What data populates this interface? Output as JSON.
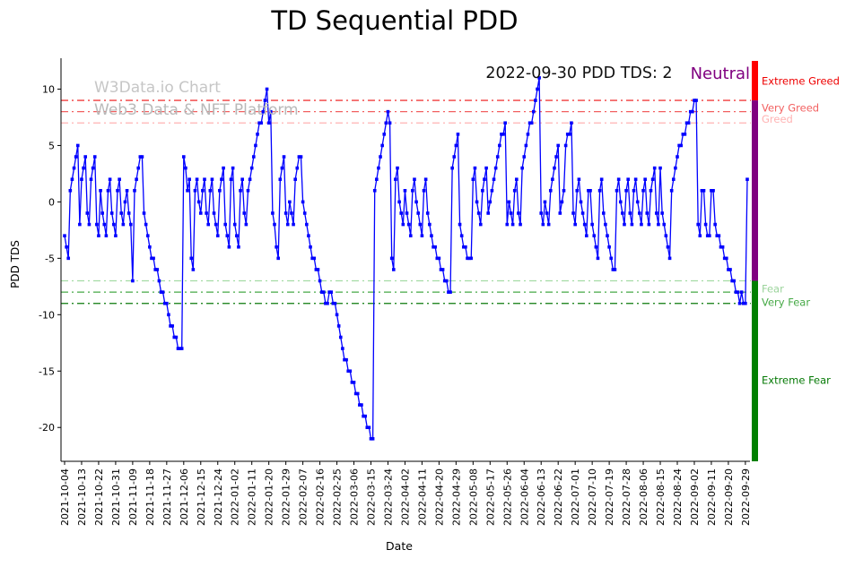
{
  "title": "TD Sequential PDD",
  "watermark": {
    "line1": "W3Data.io Chart",
    "line2": "Web3 Data & NFT Platform"
  },
  "annotation": {
    "date_text": "2022-09-30 PDD TDS: 2",
    "sentiment": "Neutral",
    "sentiment_color": "#800080"
  },
  "chart_data": {
    "type": "line",
    "title": "TD Sequential PDD",
    "xlabel": "Date",
    "ylabel": "PDD TDS",
    "line_color": "#0000ff",
    "marker": "square",
    "ylim": [
      -23,
      12.5
    ],
    "y_ticks": [
      10,
      5,
      0,
      -5,
      -10,
      -15,
      -20
    ],
    "x_start_date": "2021-10-04",
    "x_tick_interval_days": 9,
    "x_tick_labels": [
      "2021-10-04",
      "2021-10-13",
      "2021-10-22",
      "2021-10-31",
      "2021-11-09",
      "2021-11-18",
      "2021-11-27",
      "2021-12-06",
      "2021-12-15",
      "2021-12-24",
      "2022-01-02",
      "2022-01-11",
      "2022-01-20",
      "2022-01-29",
      "2022-02-07",
      "2022-02-16",
      "2022-02-25",
      "2022-03-06",
      "2022-03-15",
      "2022-03-24",
      "2022-04-02",
      "2022-04-11",
      "2022-04-20",
      "2022-04-29",
      "2022-05-08",
      "2022-05-17",
      "2022-05-26",
      "2022-06-04",
      "2022-06-13",
      "2022-06-22",
      "2022-07-01",
      "2022-07-10",
      "2022-07-19",
      "2022-07-28",
      "2022-08-06",
      "2022-08-15",
      "2022-08-24",
      "2022-09-02",
      "2022-09-11",
      "2022-09-20",
      "2022-09-29"
    ],
    "values": [
      -3,
      -4,
      -5,
      1,
      2,
      3,
      4,
      5,
      -2,
      2,
      3,
      4,
      -1,
      -2,
      2,
      3,
      4,
      -2,
      -3,
      1,
      -1,
      -2,
      -3,
      1,
      2,
      -1,
      -2,
      -3,
      1,
      2,
      -1,
      -2,
      0,
      1,
      -1,
      -2,
      -7,
      1,
      2,
      3,
      4,
      4,
      -1,
      -2,
      -3,
      -4,
      -5,
      -5,
      -6,
      -6,
      -7,
      -8,
      -8,
      -9,
      -9,
      -10,
      -11,
      -11,
      -12,
      -12,
      -13,
      -13,
      -13,
      4,
      3,
      1,
      2,
      -5,
      -6,
      1,
      2,
      0,
      -1,
      1,
      2,
      -1,
      -2,
      1,
      2,
      -1,
      -2,
      -3,
      1,
      2,
      3,
      -2,
      -3,
      -4,
      2,
      3,
      -2,
      -3,
      -4,
      1,
      2,
      -1,
      -2,
      1,
      2,
      3,
      4,
      5,
      6,
      7,
      7,
      8,
      9,
      10,
      7,
      8,
      -1,
      -2,
      -4,
      -5,
      2,
      3,
      4,
      -1,
      -2,
      0,
      -1,
      -2,
      2,
      3,
      4,
      4,
      0,
      -1,
      -2,
      -3,
      -4,
      -5,
      -5,
      -6,
      -6,
      -7,
      -8,
      -8,
      -9,
      -9,
      -8,
      -8,
      -9,
      -9,
      -10,
      -11,
      -12,
      -13,
      -14,
      -14,
      -15,
      -15,
      -16,
      -16,
      -17,
      -17,
      -18,
      -18,
      -19,
      -19,
      -20,
      -20,
      -21,
      -21,
      1,
      2,
      3,
      4,
      5,
      6,
      7,
      8,
      7,
      -5,
      -6,
      2,
      3,
      0,
      -1,
      -2,
      1,
      -1,
      -2,
      -3,
      1,
      2,
      0,
      -1,
      -2,
      -3,
      1,
      2,
      -1,
      -2,
      -3,
      -4,
      -4,
      -5,
      -5,
      -6,
      -6,
      -7,
      -7,
      -8,
      -8,
      3,
      4,
      5,
      6,
      -2,
      -3,
      -4,
      -4,
      -5,
      -5,
      -5,
      2,
      3,
      0,
      -1,
      -2,
      1,
      2,
      3,
      -1,
      0,
      1,
      2,
      3,
      4,
      5,
      6,
      6,
      7,
      -2,
      0,
      -1,
      -2,
      1,
      2,
      -1,
      -2,
      3,
      4,
      5,
      6,
      7,
      7,
      8,
      9,
      10,
      11,
      -1,
      -2,
      0,
      -1,
      -2,
      1,
      2,
      3,
      4,
      5,
      -1,
      0,
      1,
      5,
      6,
      6,
      7,
      -1,
      -2,
      1,
      2,
      0,
      -1,
      -2,
      -3,
      1,
      1,
      -2,
      -3,
      -4,
      -5,
      1,
      2,
      -1,
      -2,
      -3,
      -4,
      -5,
      -6,
      -6,
      1,
      2,
      0,
      -1,
      -2,
      1,
      2,
      -1,
      -2,
      1,
      2,
      0,
      -1,
      -2,
      1,
      2,
      -1,
      -2,
      1,
      2,
      3,
      -1,
      -2,
      3,
      -1,
      -2,
      -3,
      -4,
      -5,
      1,
      2,
      3,
      4,
      5,
      5,
      6,
      6,
      7,
      7,
      8,
      8,
      9,
      9,
      -2,
      -3,
      1,
      1,
      -2,
      -3,
      -3,
      1,
      1,
      -2,
      -3,
      -3,
      -4,
      -4,
      -5,
      -5,
      -6,
      -6,
      -7,
      -7,
      -8,
      -8,
      -9,
      -8,
      -9,
      -9,
      2
    ],
    "thresholds": [
      {
        "value": 9,
        "color": "#ee1111",
        "label": "Extreme Greed",
        "label_color": "#ee0000",
        "label_at": 10.7
      },
      {
        "value": 8,
        "color": "#f26060",
        "label": "Very Greed",
        "label_color": "#f26060",
        "label_at": 8.35
      },
      {
        "value": 7,
        "color": "#ffb3b3",
        "label": "Greed",
        "label_color": "#ffb3b3",
        "label_at": 7.35
      },
      {
        "value": -7,
        "color": "#a4dba4",
        "label": "Fear",
        "label_color": "#9cd49c",
        "label_at": -7.7
      },
      {
        "value": -8,
        "color": "#46a946",
        "label": "Very Fear",
        "label_color": "#46a946",
        "label_at": -8.9
      },
      {
        "value": -9,
        "color": "#0b7a0b",
        "label": "Extreme Fear",
        "label_color": "#067a06",
        "label_at": -15.8
      }
    ],
    "sentiment_bar": {
      "segments": [
        {
          "from": 12.5,
          "to": 9,
          "color": "#ff0000"
        },
        {
          "from": 9,
          "to": -7,
          "color": "#800080"
        },
        {
          "from": -7,
          "to": -23,
          "color": "#008000"
        }
      ]
    },
    "legend_position": "none",
    "grid": false
  }
}
